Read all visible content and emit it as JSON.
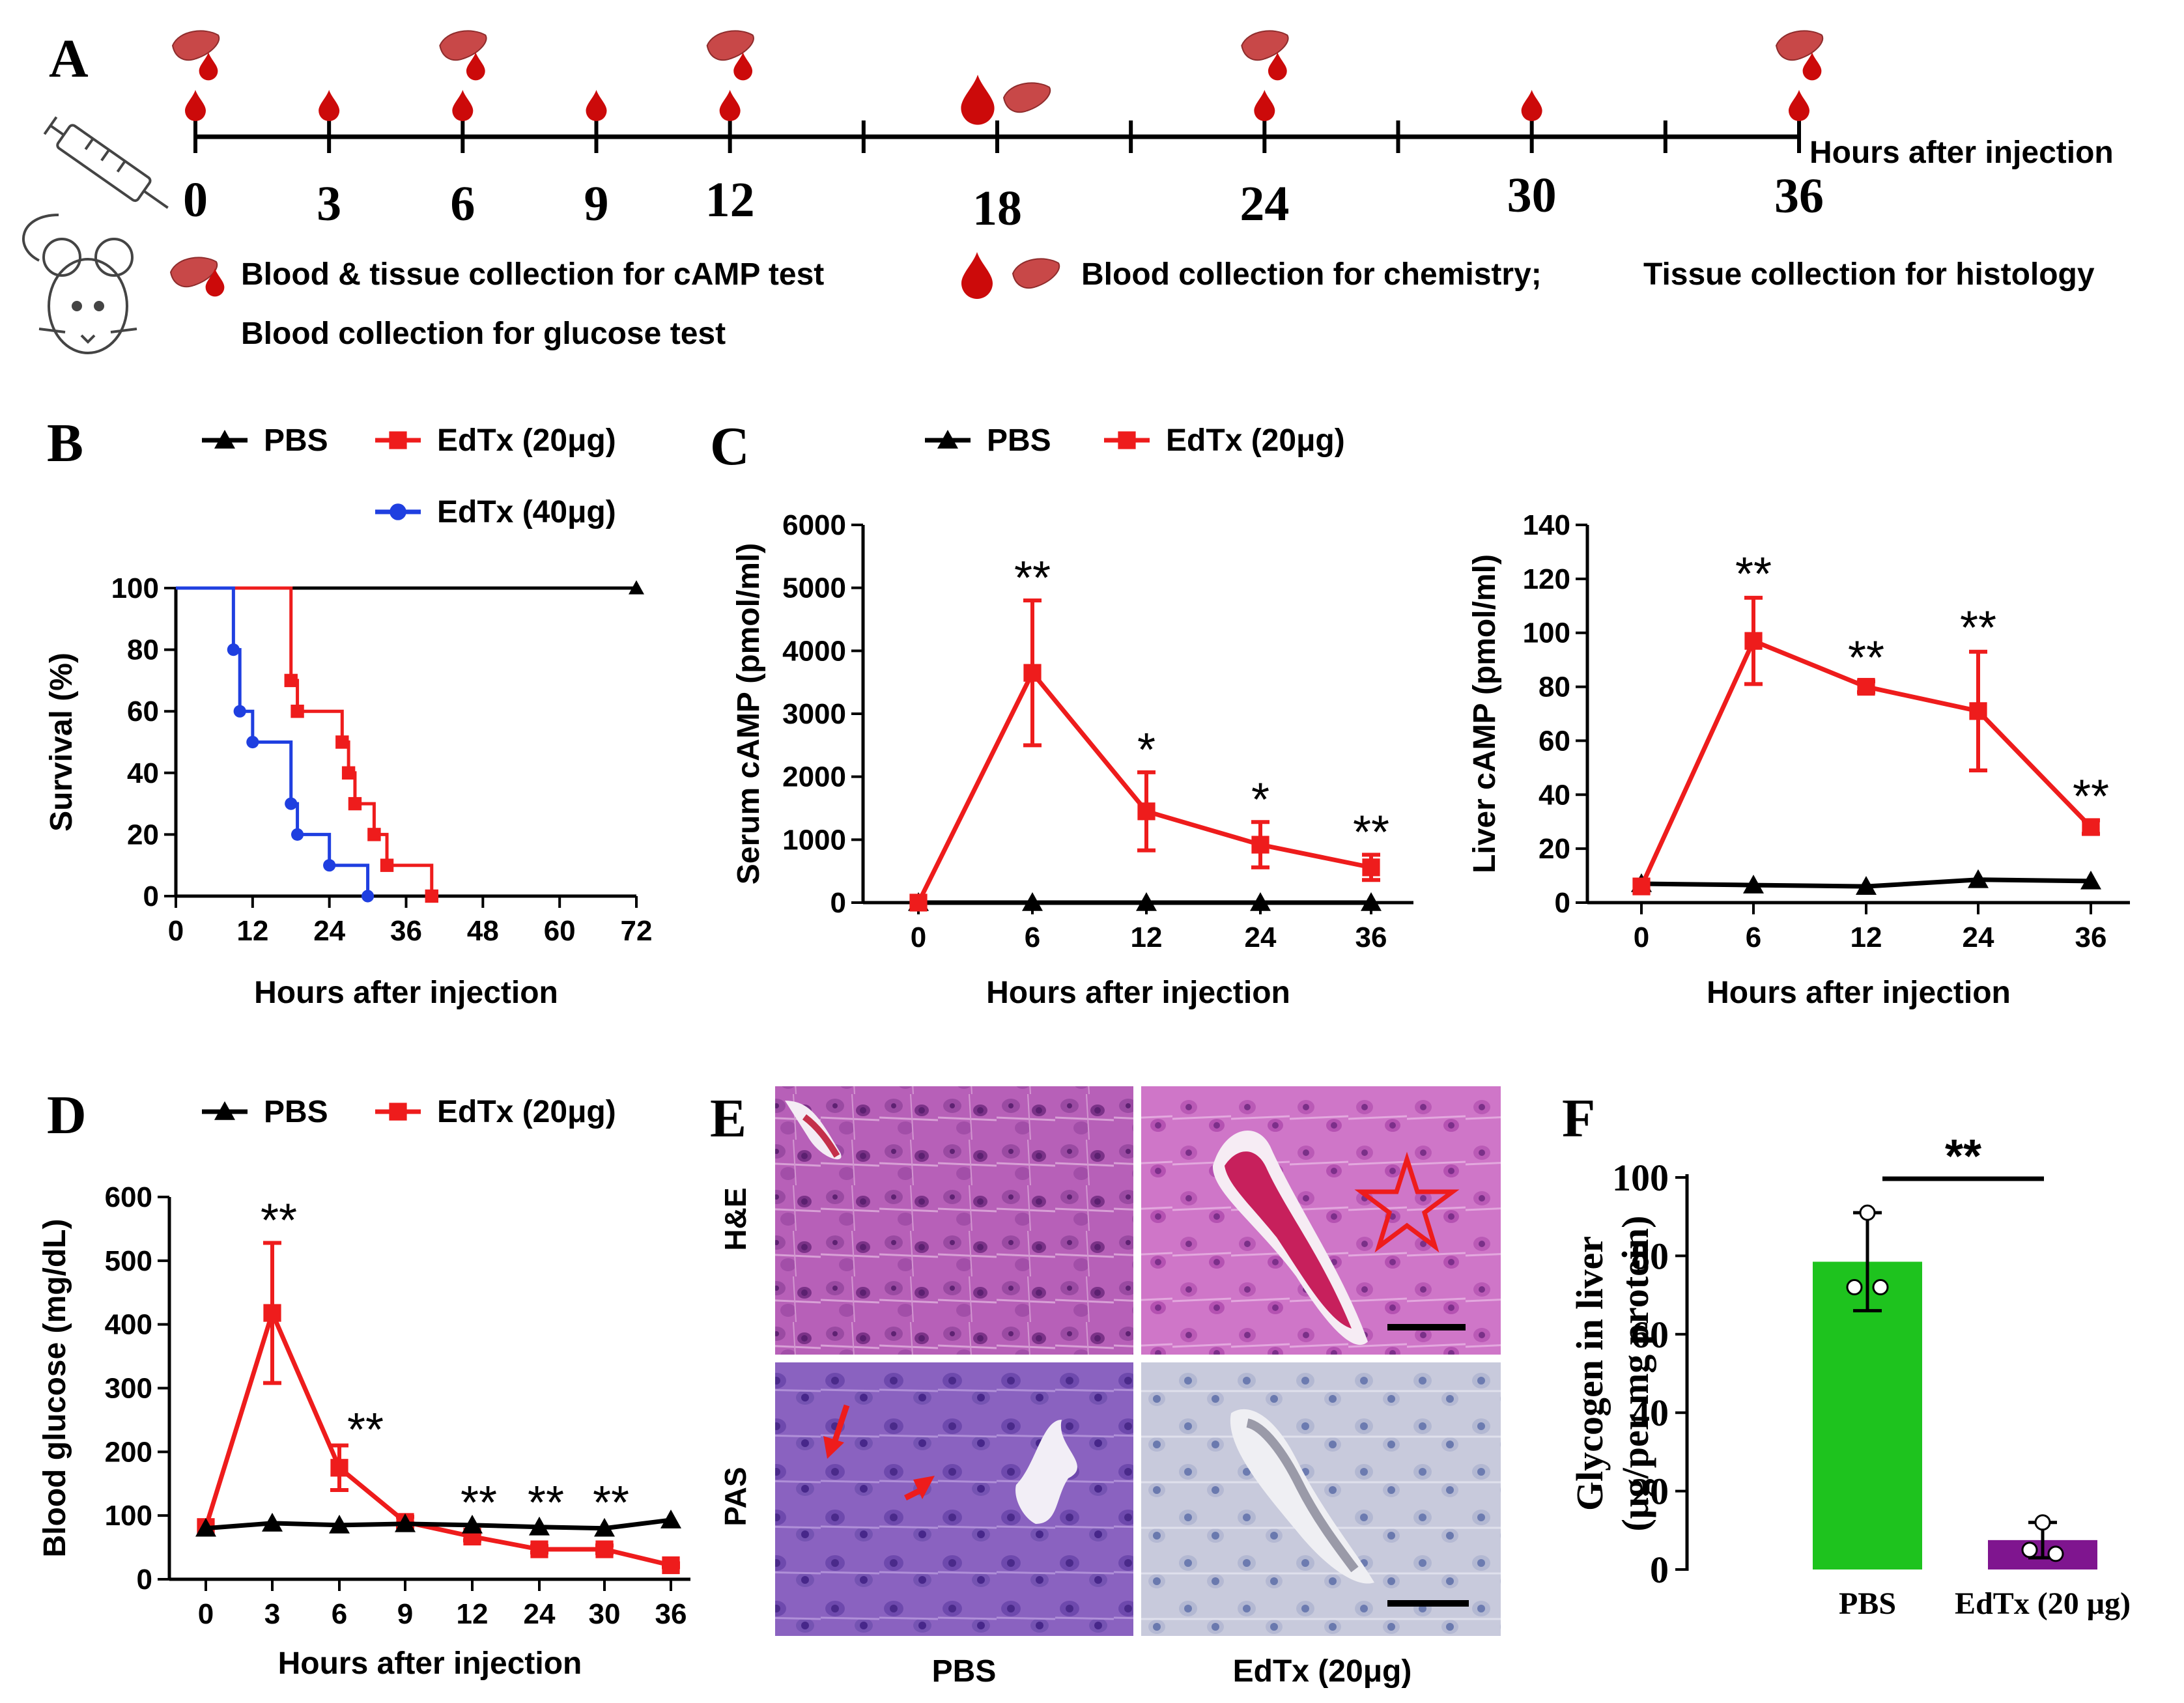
{
  "colors": {
    "pbs": "#000000",
    "edtx20": "#ee1c1c",
    "edtx40": "#1f3fe0",
    "bar_pbs": "#1ec31e",
    "bar_edtx": "#7f158f",
    "blood": "#cc0a0a",
    "liver": "#c84848"
  },
  "panel_letters": {
    "a": "A",
    "b": "B",
    "c": "C",
    "d": "D",
    "e": "E",
    "f": "F"
  },
  "panel_a": {
    "timepoints": [
      "0",
      "3",
      "6",
      "9",
      "12",
      "18",
      "24",
      "30",
      "36"
    ],
    "axis_label": "Hours after injection",
    "legend_ctest": "Blood & tissue collection for cAMP test",
    "legend_glucose": "Blood collection for glucose test",
    "legend_chem": "Blood collection for chemistry;",
    "legend_histo": "Tissue collection for histology",
    "icons": [
      "syringe-icon",
      "mouse-icon",
      "blood-drop-icon",
      "liver-icon"
    ]
  },
  "legends": {
    "pbs": "PBS",
    "edtx20": "EdTx (20μg)",
    "edtx40": "EdTx (40μg)"
  },
  "chart_data": [
    {
      "id": "B",
      "type": "line",
      "title": "",
      "xlabel": "Hours after injection",
      "ylabel": "Survival (%)",
      "xlim": [
        0,
        72
      ],
      "ylim": [
        0,
        100
      ],
      "xticks": [
        "0",
        "12",
        "24",
        "36",
        "48",
        "60",
        "72"
      ],
      "yticks": [
        "0",
        "20",
        "40",
        "60",
        "80",
        "100"
      ],
      "series": [
        {
          "name": "PBS",
          "step": [
            [
              0,
              100
            ],
            [
              72,
              100
            ]
          ],
          "markers": [
            [
              72,
              100
            ]
          ]
        },
        {
          "name": "EdTx (20μg)",
          "step": [
            [
              0,
              100
            ],
            [
              18,
              100
            ],
            [
              18,
              70
            ],
            [
              19,
              70
            ],
            [
              19,
              60
            ],
            [
              26,
              60
            ],
            [
              26,
              50
            ],
            [
              27,
              50
            ],
            [
              27,
              40
            ],
            [
              28,
              40
            ],
            [
              28,
              30
            ],
            [
              31,
              30
            ],
            [
              31,
              20
            ],
            [
              33,
              20
            ],
            [
              33,
              10
            ],
            [
              40,
              10
            ],
            [
              40,
              0
            ]
          ],
          "markers": [
            [
              18,
              70
            ],
            [
              19,
              60
            ],
            [
              26,
              50
            ],
            [
              27,
              40
            ],
            [
              28,
              30
            ],
            [
              31,
              20
            ],
            [
              33,
              10
            ],
            [
              40,
              0
            ]
          ]
        },
        {
          "name": "EdTx (40μg)",
          "step": [
            [
              0,
              100
            ],
            [
              9,
              100
            ],
            [
              9,
              80
            ],
            [
              10,
              80
            ],
            [
              10,
              60
            ],
            [
              12,
              60
            ],
            [
              12,
              50
            ],
            [
              18,
              50
            ],
            [
              18,
              30
            ],
            [
              19,
              30
            ],
            [
              19,
              20
            ],
            [
              24,
              20
            ],
            [
              24,
              10
            ],
            [
              30,
              10
            ],
            [
              30,
              0
            ]
          ],
          "markers": [
            [
              9,
              80
            ],
            [
              10,
              60
            ],
            [
              12,
              50
            ],
            [
              18,
              30
            ],
            [
              19,
              20
            ],
            [
              24,
              10
            ],
            [
              30,
              0
            ]
          ]
        }
      ]
    },
    {
      "id": "C-serum",
      "type": "line",
      "xlabel": "Hours after injection",
      "ylabel": "Serum cAMP (pmol/ml)",
      "categories": [
        "0",
        "6",
        "12",
        "24",
        "36"
      ],
      "ylim": [
        0,
        6000
      ],
      "yticks": [
        "0",
        "1000",
        "2000",
        "3000",
        "4000",
        "5000",
        "6000"
      ],
      "series": [
        {
          "name": "PBS",
          "values": [
            0,
            0,
            0,
            0,
            0
          ]
        },
        {
          "name": "EdTx (20μg)",
          "values": [
            0,
            3650,
            1450,
            920,
            560
          ],
          "errors": [
            0,
            1150,
            620,
            360,
            200
          ]
        }
      ],
      "annotations": [
        "",
        "**",
        "*",
        "*",
        "**"
      ]
    },
    {
      "id": "C-liver",
      "type": "line",
      "xlabel": "Hours after injection",
      "ylabel": "Liver cAMP (pmol/ml)",
      "categories": [
        "0",
        "6",
        "12",
        "24",
        "36"
      ],
      "ylim": [
        0,
        140
      ],
      "yticks": [
        "0",
        "20",
        "40",
        "60",
        "80",
        "100",
        "120",
        "140"
      ],
      "series": [
        {
          "name": "PBS",
          "values": [
            7,
            6.5,
            6,
            8.5,
            8
          ]
        },
        {
          "name": "EdTx (20μg)",
          "values": [
            6,
            97,
            80,
            71,
            28
          ],
          "errors": [
            0,
            16,
            2,
            22,
            2.5
          ]
        }
      ],
      "annotations": [
        "",
        "**",
        "**",
        "**",
        "**"
      ]
    },
    {
      "id": "D",
      "type": "line",
      "xlabel": "Hours after injection",
      "ylabel": "Blood glucose (mg/dL)",
      "categories": [
        "0",
        "3",
        "6",
        "9",
        "12",
        "24",
        "30",
        "36"
      ],
      "ylim": [
        0,
        600
      ],
      "yticks": [
        "0",
        "100",
        "200",
        "300",
        "400",
        "500",
        "600"
      ],
      "series": [
        {
          "name": "PBS",
          "values": [
            80,
            88,
            85,
            87,
            85,
            82,
            80,
            93
          ]
        },
        {
          "name": "EdTx (20μg)",
          "values": [
            82,
            418,
            175,
            90,
            67,
            47,
            47,
            22
          ],
          "errors": [
            0,
            110,
            35,
            8,
            6,
            5,
            6,
            3
          ]
        }
      ],
      "annotations": [
        "",
        "**",
        "**",
        "",
        "**",
        "**",
        "**",
        ""
      ]
    },
    {
      "id": "F",
      "type": "bar",
      "categories": [
        "PBS",
        "EdTx (20 μg)"
      ],
      "values": [
        78.5,
        7.5
      ],
      "errors": [
        12.5,
        4.5
      ],
      "points": [
        [
          91,
          72,
          72
        ],
        [
          12,
          5,
          4
        ]
      ],
      "ylabel_line1": "Glycogen in liver",
      "ylabel_line2": "(μg/per mg protein)",
      "ylim": [
        0,
        100
      ],
      "yticks": [
        "0",
        "20",
        "40",
        "60",
        "80",
        "100"
      ],
      "significance": "**"
    }
  ],
  "panel_e": {
    "row_labels": [
      "H&E",
      "PAS"
    ],
    "col_labels": [
      "PBS",
      "EdTx  (20μg)"
    ],
    "images": [
      "he-pbs-micrograph",
      "he-edtx-micrograph",
      "pas-pbs-micrograph",
      "pas-edtx-micrograph"
    ]
  }
}
